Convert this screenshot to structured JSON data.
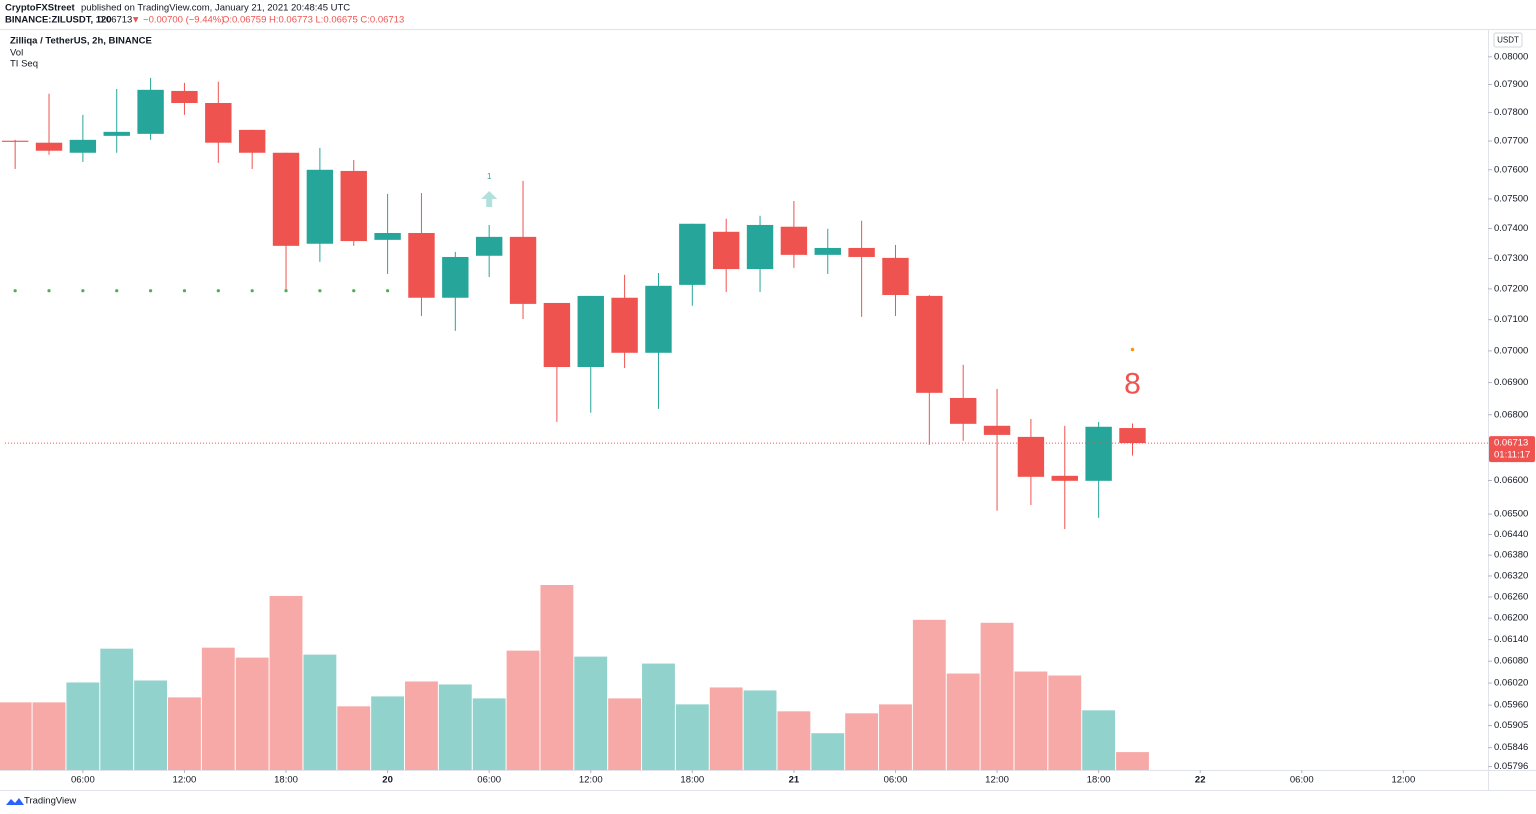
{
  "header": {
    "publisher": "CryptoFXStreet",
    "published": "published on TradingView.com, January 21, 2021 20:48:45 UTC",
    "symbol": "BINANCE:ZILUSDT, 120",
    "last": "0.06713",
    "change": "▼ −0.00700 (−9.44%)",
    "ohlc": "O:0.06759 H:0.06773 L:0.06675 C:0.06713"
  },
  "chart_data": {
    "type": "candlestick",
    "title": "Zilliqa / TetherUS, 2h, BINANCE",
    "indicators": [
      "Vol",
      "TI Seq"
    ],
    "currency": "USDT",
    "log_scale": true,
    "grid": false,
    "up_color": "#26a69a",
    "down_color": "#ef5350",
    "vol_up_color": "#92d2cc",
    "vol_down_color": "#f7a9a7",
    "open": [
      0.07701,
      0.07694,
      0.07659,
      0.07718,
      0.07725,
      0.07877,
      0.07834,
      0.07739,
      0.07659,
      0.07349,
      0.07596,
      0.07362,
      0.07385,
      0.07171,
      0.07309,
      0.07372,
      0.07154,
      0.06949,
      0.07171,
      0.06994,
      0.07213,
      0.07389,
      0.07265,
      0.07406,
      0.07312,
      0.07335,
      0.07302,
      0.07177,
      0.06852,
      0.06766,
      0.06732,
      0.06614,
      0.06599,
      0.06759
    ],
    "high": [
      0.07704,
      0.07867,
      0.07792,
      0.07884,
      0.07924,
      0.07906,
      0.0791,
      0.07739,
      0.07659,
      0.07676,
      0.07634,
      0.07517,
      0.0752,
      0.07322,
      0.07412,
      0.07562,
      0.07154,
      0.07177,
      0.07246,
      0.07252,
      0.07416,
      0.07433,
      0.07443,
      0.07493,
      0.07399,
      0.07426,
      0.07345,
      0.0718,
      0.06956,
      0.0688,
      0.06787,
      0.06766,
      0.06778,
      0.06773
    ],
    "low": [
      0.07603,
      0.07652,
      0.07627,
      0.07659,
      0.07704,
      0.07792,
      0.07624,
      0.07603,
      0.07197,
      0.07289,
      0.07342,
      0.07249,
      0.07112,
      0.07064,
      0.07239,
      0.07102,
      0.06778,
      0.06806,
      0.06946,
      0.06818,
      0.07145,
      0.0719,
      0.0719,
      0.07269,
      0.07249,
      0.07109,
      0.07112,
      0.06708,
      0.0672,
      0.0651,
      0.06527,
      0.06456,
      0.06489,
      0.06675
    ],
    "close": [
      0.07697,
      0.07666,
      0.07704,
      0.07732,
      0.07881,
      0.07834,
      0.07694,
      0.07659,
      0.07342,
      0.076,
      0.07358,
      0.07385,
      0.07171,
      0.07305,
      0.07372,
      0.07151,
      0.06949,
      0.07177,
      0.06994,
      0.0721,
      0.07416,
      0.07265,
      0.07412,
      0.07312,
      0.07335,
      0.07305,
      0.0718,
      0.06868,
      0.06772,
      0.06738,
      0.06611,
      0.06599,
      0.06763,
      0.06713
    ],
    "volume": [
      68,
      68,
      88,
      122,
      90,
      73,
      123,
      113,
      175,
      116,
      64,
      74,
      89,
      86,
      72,
      120,
      186,
      114,
      72,
      107,
      66,
      83,
      80,
      59,
      37,
      57,
      66,
      151,
      97,
      148,
      99,
      95,
      60,
      18
    ],
    "tdst_line": {
      "value": 0.07194,
      "from": 0,
      "to": 11
    },
    "seq_labels": [
      {
        "candle": 14,
        "label": "1",
        "color": "#26a69a"
      },
      {
        "candle": 33,
        "label": "8",
        "color": "#ef5350"
      }
    ],
    "last_price_label": "0.06713",
    "countdown": "01:11:17",
    "ylim": [
      0.05787,
      0.08098
    ],
    "yticks": [
      {
        "value": 0.08,
        "label": "0.08000"
      },
      {
        "value": 0.079,
        "label": "0.07900"
      },
      {
        "value": 0.078,
        "label": "0.07800"
      },
      {
        "value": 0.077,
        "label": "0.07700"
      },
      {
        "value": 0.076,
        "label": "0.07600"
      },
      {
        "value": 0.075,
        "label": "0.07500"
      },
      {
        "value": 0.074,
        "label": "0.07400"
      },
      {
        "value": 0.073,
        "label": "0.07300"
      },
      {
        "value": 0.072,
        "label": "0.07200"
      },
      {
        "value": 0.071,
        "label": "0.07100"
      },
      {
        "value": 0.07,
        "label": "0.07000"
      },
      {
        "value": 0.069,
        "label": "0.06900"
      },
      {
        "value": 0.068,
        "label": "0.06800"
      },
      {
        "value": 0.066,
        "label": "0.06600"
      },
      {
        "value": 0.065,
        "label": "0.06500"
      },
      {
        "value": 0.0644,
        "label": "0.06440"
      },
      {
        "value": 0.0638,
        "label": "0.06380"
      },
      {
        "value": 0.0632,
        "label": "0.06320"
      },
      {
        "value": 0.0626,
        "label": "0.06260"
      },
      {
        "value": 0.062,
        "label": "0.06200"
      },
      {
        "value": 0.0614,
        "label": "0.06140"
      },
      {
        "value": 0.0608,
        "label": "0.06080"
      },
      {
        "value": 0.0602,
        "label": "0.06020"
      },
      {
        "value": 0.0596,
        "label": "0.05960"
      },
      {
        "value": 0.05905,
        "label": "0.05905"
      },
      {
        "value": 0.05846,
        "label": "0.05846"
      },
      {
        "value": 0.05796,
        "label": "0.05796"
      }
    ],
    "xlim": [
      -0.3,
      43.5
    ],
    "xticks": [
      {
        "value": 2,
        "label": "06:00"
      },
      {
        "value": 5,
        "label": "12:00"
      },
      {
        "value": 8,
        "label": "18:00"
      },
      {
        "value": 11,
        "label": "20"
      },
      {
        "value": 14,
        "label": "06:00"
      },
      {
        "value": 17,
        "label": "12:00"
      },
      {
        "value": 20,
        "label": "18:00"
      },
      {
        "value": 23,
        "label": "21"
      },
      {
        "value": 26,
        "label": "06:00"
      },
      {
        "value": 29,
        "label": "12:00"
      },
      {
        "value": 32,
        "label": "18:00"
      },
      {
        "value": 35,
        "label": "22"
      },
      {
        "value": 38,
        "label": "06:00"
      },
      {
        "value": 41,
        "label": "12:00"
      }
    ]
  },
  "footer": {
    "brand": "TradingView"
  }
}
